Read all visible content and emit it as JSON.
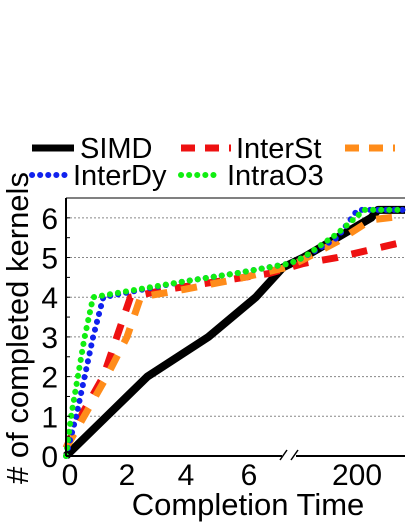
{
  "chart_data": {
    "type": "line",
    "title": "",
    "xlabel": "Completion Time",
    "ylabel": "# of completed kernels",
    "ylim": [
      0,
      6.5
    ],
    "yticks": [
      "0",
      "1",
      "2",
      "3",
      "4",
      "5",
      "6"
    ],
    "xticks": [
      "0",
      "2",
      "4",
      "6",
      "200"
    ],
    "grid": true,
    "legend_position": "top",
    "series": [
      {
        "name": "SIMD",
        "color": "#000000",
        "style": "solid",
        "points": [
          [
            0,
            0
          ],
          [
            1.2,
            1
          ],
          [
            2.4,
            2
          ],
          [
            4.2,
            3
          ],
          [
            5.6,
            4
          ],
          [
            6.4,
            4.75
          ],
          [
            7,
            5
          ],
          [
            8,
            5.5
          ],
          [
            9,
            6
          ],
          [
            9.2,
            6.2
          ],
          [
            10,
            6.2
          ]
        ]
      },
      {
        "name": "InterSt",
        "color": "#ee1111",
        "style": "dashed",
        "points": [
          [
            0,
            0.2
          ],
          [
            0.5,
            1.1
          ],
          [
            1.1,
            2
          ],
          [
            1.5,
            3
          ],
          [
            1.9,
            4
          ],
          [
            3,
            4.2
          ],
          [
            4.5,
            4.4
          ],
          [
            6,
            4.6
          ],
          [
            7,
            4.85
          ],
          [
            8,
            5
          ],
          [
            9,
            5.2
          ],
          [
            10,
            5.4
          ]
        ]
      },
      {
        "name": "InterSt",
        "color": "#ff8c1a",
        "style": "dashed",
        "points": [
          [
            0,
            0.2
          ],
          [
            0.6,
            1.1
          ],
          [
            1.2,
            2
          ],
          [
            1.8,
            3
          ],
          [
            2.2,
            4
          ],
          [
            3.5,
            4.2
          ],
          [
            5,
            4.45
          ],
          [
            6.5,
            4.75
          ],
          [
            7,
            4.95
          ],
          [
            8,
            5.4
          ],
          [
            9,
            5.95
          ],
          [
            10,
            6.05
          ]
        ]
      },
      {
        "name": "InterDy",
        "color": "#1122ee",
        "style": "dotted",
        "points": [
          [
            0,
            0
          ],
          [
            0.3,
            1
          ],
          [
            0.55,
            2
          ],
          [
            0.8,
            3
          ],
          [
            1.1,
            4
          ],
          [
            2,
            4.15
          ],
          [
            3.5,
            4.4
          ],
          [
            5,
            4.6
          ],
          [
            6.6,
            4.85
          ],
          [
            7,
            5
          ],
          [
            8,
            5.5
          ],
          [
            8.6,
            6.2
          ],
          [
            10,
            6.2
          ]
        ]
      },
      {
        "name": "IntraO3",
        "color": "#11ee11",
        "style": "dotted",
        "points": [
          [
            0,
            0
          ],
          [
            0.15,
            1
          ],
          [
            0.35,
            2
          ],
          [
            0.55,
            3
          ],
          [
            0.8,
            4
          ],
          [
            1.8,
            4.15
          ],
          [
            3.5,
            4.4
          ],
          [
            5,
            4.6
          ],
          [
            6.6,
            4.85
          ],
          [
            7,
            5
          ],
          [
            8,
            5.6
          ],
          [
            8.8,
            6.2
          ],
          [
            10,
            6.2
          ]
        ]
      }
    ]
  }
}
